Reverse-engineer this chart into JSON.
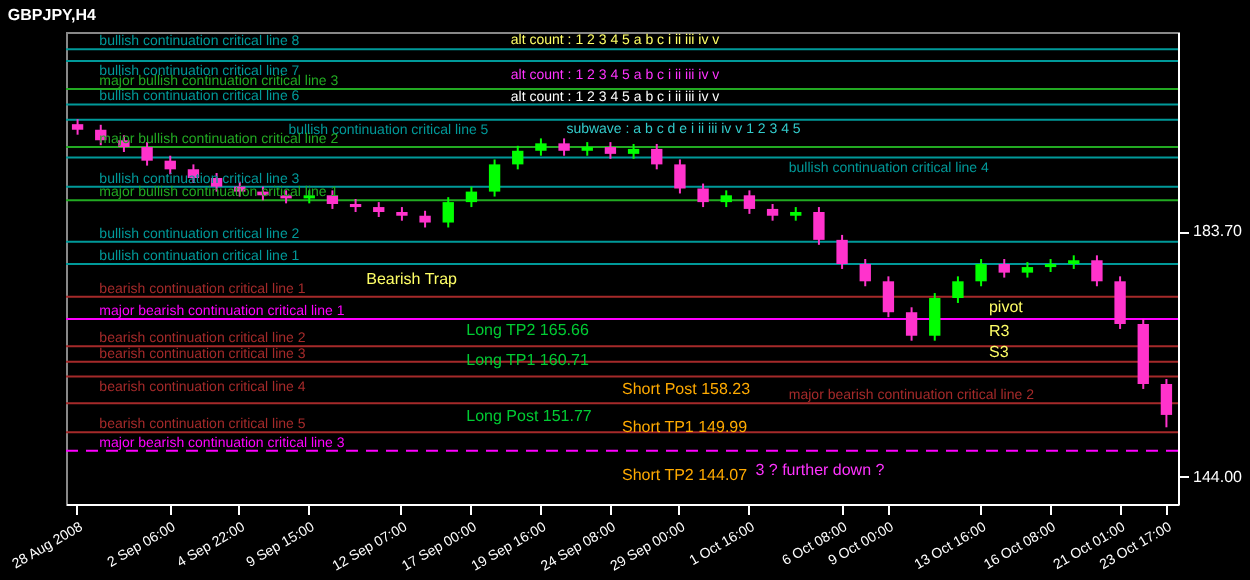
{
  "chart_data": {
    "type": "candlestick",
    "title": "GBPJPY,H4",
    "categories": [
      "28 Aug 2008",
      null,
      null,
      null,
      "2 Sep 06:00",
      null,
      null,
      "4 Sep 22:00",
      null,
      null,
      "9 Sep 15:00",
      null,
      null,
      null,
      "12 Sep 07:00",
      null,
      null,
      "17 Sep 00:00",
      null,
      null,
      "19 Sep 16:00",
      null,
      null,
      "24 Sep 08:00",
      null,
      null,
      "29 Sep 00:00",
      null,
      null,
      "1 Oct 16:00",
      null,
      null,
      null,
      "6 Oct 08:00",
      null,
      "9 Oct 00:00",
      null,
      null,
      null,
      "13 Oct 16:00",
      null,
      null,
      "16 Oct 08:00",
      null,
      null,
      "21 Oct 01:00",
      null,
      "23 Oct 17:00"
    ],
    "ohlc": [
      [
        201.0,
        201.8,
        199.3,
        200.1
      ],
      [
        200.1,
        200.9,
        197.6,
        198.4
      ],
      [
        198.4,
        199.2,
        196.5,
        197.3
      ],
      [
        197.3,
        198.1,
        194.3,
        195.1
      ],
      [
        195.1,
        195.9,
        192.9,
        193.7
      ],
      [
        193.7,
        194.5,
        191.5,
        192.3
      ],
      [
        192.3,
        193.1,
        190.1,
        190.9
      ],
      [
        190.9,
        191.7,
        189.3,
        190.1
      ],
      [
        190.1,
        190.9,
        188.7,
        189.5
      ],
      [
        189.5,
        190.3,
        188.2,
        189.0
      ],
      [
        189.0,
        190.3,
        188.2,
        189.5
      ],
      [
        189.5,
        190.3,
        187.3,
        188.1
      ],
      [
        188.1,
        188.9,
        186.8,
        187.6
      ],
      [
        187.6,
        188.4,
        186.0,
        186.8
      ],
      [
        186.8,
        187.6,
        185.4,
        186.2
      ],
      [
        186.2,
        187.0,
        184.3,
        185.1
      ],
      [
        185.1,
        189.2,
        184.3,
        188.4
      ],
      [
        188.4,
        190.9,
        187.6,
        190.1
      ],
      [
        190.1,
        195.3,
        189.3,
        194.5
      ],
      [
        194.5,
        197.5,
        193.7,
        196.7
      ],
      [
        196.7,
        198.7,
        195.9,
        197.9
      ],
      [
        197.9,
        198.7,
        195.9,
        196.7
      ],
      [
        196.7,
        198.1,
        195.9,
        197.3
      ],
      [
        197.3,
        198.1,
        195.4,
        196.2
      ],
      [
        196.2,
        197.8,
        195.4,
        197.0
      ],
      [
        197.0,
        197.8,
        193.7,
        194.5
      ],
      [
        194.5,
        195.3,
        189.8,
        190.6
      ],
      [
        190.6,
        191.4,
        187.6,
        188.4
      ],
      [
        188.4,
        190.3,
        187.6,
        189.5
      ],
      [
        189.5,
        190.3,
        186.5,
        187.3
      ],
      [
        187.3,
        188.1,
        185.4,
        186.2
      ],
      [
        186.2,
        187.6,
        185.4,
        186.8
      ],
      [
        186.8,
        187.6,
        181.5,
        182.3
      ],
      [
        182.3,
        183.1,
        177.6,
        178.4
      ],
      [
        178.4,
        179.2,
        174.8,
        175.6
      ],
      [
        175.6,
        176.4,
        169.8,
        170.6
      ],
      [
        170.6,
        171.4,
        166.0,
        166.8
      ],
      [
        166.8,
        173.7,
        166.0,
        172.9
      ],
      [
        172.9,
        176.4,
        172.1,
        175.6
      ],
      [
        175.6,
        179.2,
        174.8,
        178.4
      ],
      [
        178.4,
        179.2,
        176.2,
        177.0
      ],
      [
        177.0,
        178.7,
        176.2,
        177.9
      ],
      [
        177.9,
        179.2,
        177.1,
        178.4
      ],
      [
        178.4,
        179.8,
        177.6,
        179.0
      ],
      [
        179.0,
        179.8,
        174.8,
        175.6
      ],
      [
        175.6,
        176.4,
        167.9,
        168.7
      ],
      [
        168.7,
        169.5,
        158.2,
        159.0
      ],
      [
        159.0,
        159.8,
        152.0,
        154.0
      ]
    ],
    "ylim": [
      139.6,
      215.9
    ],
    "yticks": [
      {
        "value": 144,
        "label": "144.00"
      },
      {
        "value": 183.7,
        "label": "183.70"
      }
    ],
    "ref_lines": [
      {
        "axis": "y",
        "value": 213.1,
        "label": "bullish continuation critical line 8",
        "color": "#009999"
      },
      {
        "axis": "y",
        "value": 211.2,
        "label": "bullish continuation critical line 7",
        "color": "#009999"
      },
      {
        "axis": "y",
        "value": 206.7,
        "label": "major bullish continuation critical line 3",
        "color": "#22aa22"
      },
      {
        "axis": "y",
        "value": 204.2,
        "label": "bullish continuation critical line 6",
        "color": "#009999"
      },
      {
        "axis": "y",
        "value": 201.7,
        "label": "bullish continuation critical line 5",
        "color": "#009999"
      },
      {
        "axis": "y",
        "value": 197.3,
        "label": "major bullish continuation critical line 2",
        "color": "#22aa22"
      },
      {
        "axis": "y",
        "value": 195.6,
        "label": "bullish continuation critical line 4",
        "color": "#009999"
      },
      {
        "axis": "y",
        "value": 190.9,
        "label": "bullish continuation critical line 3",
        "color": "#009999"
      },
      {
        "axis": "y",
        "value": 188.7,
        "label": "major bullish continuation critical line 1",
        "color": "#22aa22"
      },
      {
        "axis": "y",
        "value": 182.0,
        "label": "bullish continuation critical line 2",
        "color": "#009999"
      },
      {
        "axis": "y",
        "value": 178.4,
        "label": "bullish continuation critical line 1",
        "color": "#009999"
      },
      {
        "axis": "y",
        "value": 173.1,
        "label": "bearish continuation critical line 1",
        "color": "#a52a2a"
      },
      {
        "axis": "y",
        "value": 169.5,
        "label": "major bearish continuation critical line 1",
        "color": "#ff00ff"
      },
      {
        "axis": "y",
        "value": 165.1,
        "label": "bearish continuation critical line 2",
        "color": "#a52a2a"
      },
      {
        "axis": "y",
        "value": 162.6,
        "label": "bearish continuation critical line 3",
        "color": "#a52a2a"
      },
      {
        "axis": "y",
        "value": 160.2,
        "label": "bearish continuation critical line 4",
        "color": "#a52a2a"
      },
      {
        "axis": "y",
        "value": 155.9,
        "label": "major bearish continuation critical line 2",
        "color": "#a52a2a"
      },
      {
        "axis": "y",
        "value": 151.2,
        "label": "bearish continuation critical line 5",
        "color": "#a52a2a"
      },
      {
        "axis": "y",
        "value": 148.2,
        "label": "major bearish continuation critical line 3",
        "color": "#ff00ff",
        "line_style": "dashed"
      }
    ],
    "annotations": [
      {
        "text": "Long TP2 165.66",
        "y": 165.66
      },
      {
        "text": "Long TP1 160.71",
        "y": 160.71
      },
      "Short Post 158.23",
      {
        "text": "Long Post 151.77",
        "y": 151.77
      },
      {
        "text": "Short TP1 149.99",
        "y": 149.99
      },
      "Short TP2 144.07",
      "alt count : 1 2 3 4 5 a b c i ii iii iv v",
      "alt count : 1 2 3 4 5 a b c i ii iii iv v",
      "alt count : 1 2 3 4 5 a b c i ii iii iv v",
      "subwave : a b c d e i ii iii iv v 1 2 3 4 5",
      "Bearish Trap",
      "3 ? further down ?",
      "pivot",
      "R3",
      "S3"
    ]
  }
}
